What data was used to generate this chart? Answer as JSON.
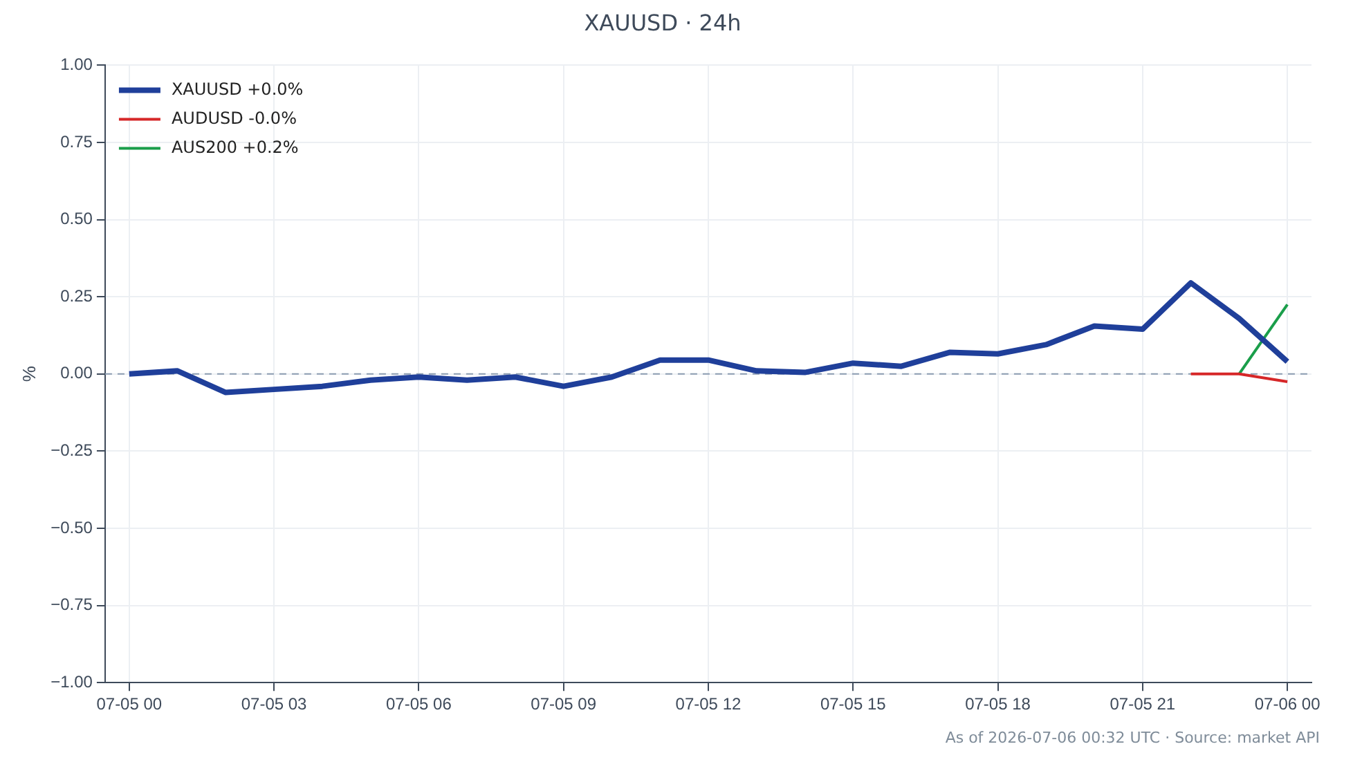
{
  "chart_data": {
    "type": "line",
    "title": "XAUUSD · 24h",
    "ylabel": "%",
    "categories": [
      "07-05 00",
      null,
      null,
      "07-05 03",
      null,
      null,
      "07-05 06",
      null,
      null,
      "07-05 09",
      null,
      null,
      "07-05 12",
      null,
      null,
      "07-05 15",
      null,
      null,
      "07-05 18",
      null,
      null,
      "07-05 21",
      null,
      null,
      "07-06 00"
    ],
    "series": [
      {
        "name": "XAUUSD +0.0%",
        "color": "#1f3f9a",
        "values": [
          0,
          0.01,
          -0.06,
          -0.05,
          -0.04,
          -0.02,
          -0.01,
          -0.02,
          -0.01,
          -0.04,
          -0.01,
          0.045,
          0.045,
          0.01,
          0.005,
          0.035,
          0.025,
          0.07,
          0.065,
          0.095,
          0.155,
          0.145,
          0.295,
          0.18,
          0.04
        ]
      },
      {
        "name": "AUDUSD -0.0%",
        "color": "#d62728",
        "values": [
          null,
          null,
          null,
          null,
          null,
          null,
          null,
          null,
          null,
          null,
          null,
          null,
          null,
          null,
          null,
          null,
          null,
          null,
          null,
          null,
          null,
          null,
          0,
          0,
          -0.025
        ]
      },
      {
        "name": "AUS200 +0.2%",
        "color": "#1a9e4a",
        "values": [
          null,
          null,
          null,
          null,
          null,
          null,
          null,
          null,
          null,
          null,
          null,
          null,
          null,
          null,
          null,
          null,
          null,
          null,
          null,
          null,
          null,
          null,
          null,
          0,
          0.225
        ]
      }
    ],
    "ylim": [
      -1,
      1
    ],
    "yticks": [
      {
        "value": -1,
        "label": "−1.00"
      },
      {
        "value": -0.75,
        "label": "−0.75"
      },
      {
        "value": -0.5,
        "label": "−0.50"
      },
      {
        "value": -0.25,
        "label": "−0.25"
      },
      {
        "value": 0,
        "label": "0.00"
      },
      {
        "value": 0.25,
        "label": "0.25"
      },
      {
        "value": 0.5,
        "label": "0.50"
      },
      {
        "value": 0.75,
        "label": "0.75"
      },
      {
        "value": 1,
        "label": "1.00"
      }
    ],
    "ref_lines": [
      {
        "axis": "y",
        "value": 0,
        "color": "#8a9bb0",
        "line_style": "dashed"
      }
    ],
    "grid": true,
    "legend": "top left",
    "marker": "none",
    "line_style": "solid",
    "annotations": [
      "As of 2026-07-06 00:32 UTC · Source: market API"
    ]
  }
}
